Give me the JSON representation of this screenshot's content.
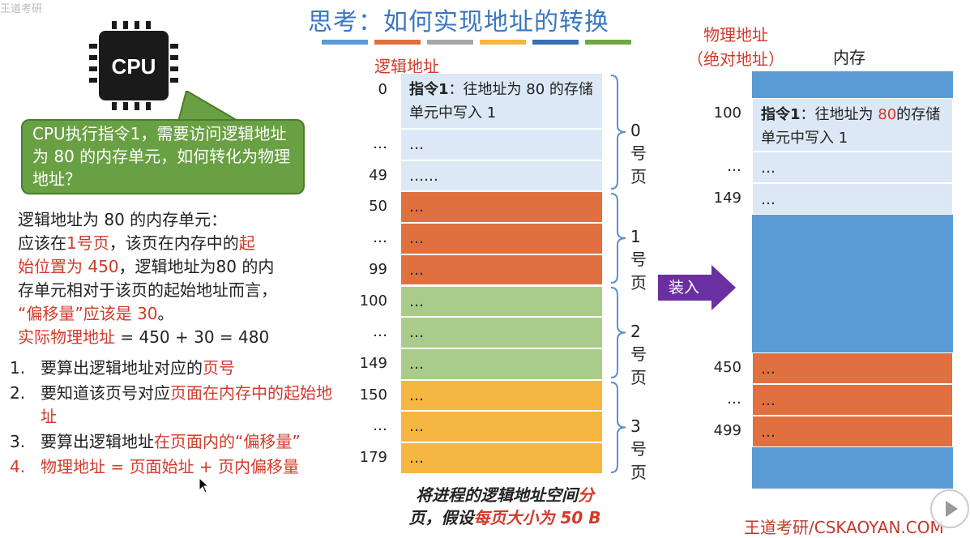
{
  "header": {
    "title": "思考：如何实现地址的转换",
    "bar_colors": [
      "#5b9bd5",
      "#e07040",
      "#a6a6a6",
      "#f5b642",
      "#3a6fb0",
      "#70a845"
    ]
  },
  "watermark_top": "王道考研",
  "cpu": {
    "label": "CPU"
  },
  "bubble": {
    "text": "CPU执行指令1，需要访问逻辑地址为 80 的内存单元，如何转化为物理地址？"
  },
  "explanation": {
    "l1": "逻辑地址为 80 的内存单元：",
    "l2a": "应该在",
    "l2b": "1号页",
    "l2c": "，该页在内存中的",
    "l2d": "起",
    "l3a": "始位置为 450",
    "l3b": "，逻辑地址为80 的内",
    "l4": "存单元相对于该页的起始地址而言，",
    "l5a": "“偏移量”应该是 30",
    "l5b": "。",
    "l6a": "实际物理地址",
    "l6b": " = 450 + 30 = 480"
  },
  "steps": [
    {
      "num": "1.",
      "a": "要算出逻辑地址对应的",
      "b": "页号"
    },
    {
      "num": "2.",
      "a": "要知道该页号对应",
      "b": "页面在内存中的起始地址"
    },
    {
      "num": "3.",
      "a": "要算出逻辑地址",
      "b": "在页面内的“偏移量”"
    },
    {
      "num": "4.",
      "a": "物理地址 = 页面始址 + 页内偏移量",
      "b": ""
    }
  ],
  "logical": {
    "label": "逻辑地址",
    "addresses": [
      "0",
      "…",
      "49",
      "50",
      "…",
      "99",
      "100",
      "…",
      "149",
      "150",
      "…",
      "179"
    ],
    "cells": [
      {
        "bold": "指令1",
        "text": "：往地址为 80 的存储单元中写入 1"
      },
      {
        "bold": "",
        "text": "…"
      },
      {
        "bold": "",
        "text": "……"
      },
      {
        "bold": "",
        "text": "…"
      },
      {
        "bold": "",
        "text": "…"
      },
      {
        "bold": "",
        "text": "…"
      },
      {
        "bold": "",
        "text": "…"
      },
      {
        "bold": "",
        "text": "…"
      },
      {
        "bold": "",
        "text": "…"
      },
      {
        "bold": "",
        "text": "…"
      },
      {
        "bold": "",
        "text": "…"
      },
      {
        "bold": "",
        "text": "…"
      }
    ],
    "pages": [
      "0号页",
      "1号页",
      "2号页",
      "3号页"
    ],
    "page_colors": [
      "#dce8f5",
      "#e07040",
      "#a9cc8a",
      "#f5b642"
    ]
  },
  "caption": {
    "a": "将进程的逻辑地址空间",
    "b": "分",
    "c": "页，假设",
    "d": "每页大小为 50 B"
  },
  "arrow": {
    "label": "装入"
  },
  "physical": {
    "title_line1": "物理地址",
    "title_line2": "（绝对地址）",
    "mem_title": "内存",
    "addresses": [
      "100",
      "…",
      "149",
      "450",
      "…",
      "499"
    ],
    "cells": [
      {
        "bold": "指令1",
        "text1": "：往地址为 ",
        "red": "80",
        "text2": "的存储单元中写入 1"
      },
      {
        "text": "…"
      },
      {
        "text": "…"
      },
      {
        "text": "…"
      },
      {
        "text": "…"
      },
      {
        "text": "…"
      }
    ]
  },
  "watermark": "王道考研/CSKAOYAN.COM"
}
